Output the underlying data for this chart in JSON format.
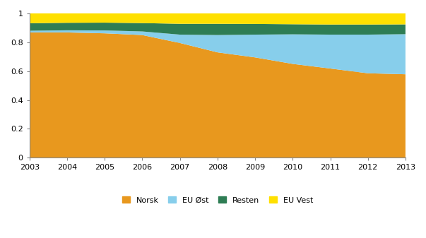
{
  "years": [
    2003,
    2004,
    2005,
    2006,
    2007,
    2008,
    2009,
    2010,
    2011,
    2012,
    2013
  ],
  "norsk": [
    0.868,
    0.868,
    0.862,
    0.85,
    0.795,
    0.73,
    0.695,
    0.65,
    0.618,
    0.585,
    0.578
  ],
  "eu_ost": [
    0.012,
    0.015,
    0.02,
    0.025,
    0.058,
    0.12,
    0.158,
    0.205,
    0.235,
    0.268,
    0.278
  ],
  "resten": [
    0.052,
    0.052,
    0.054,
    0.058,
    0.075,
    0.078,
    0.074,
    0.07,
    0.07,
    0.07,
    0.068
  ],
  "eu_vest": [
    0.068,
    0.065,
    0.064,
    0.067,
    0.072,
    0.072,
    0.073,
    0.075,
    0.077,
    0.077,
    0.076
  ],
  "colors": {
    "norsk": "#E8981E",
    "eu_ost": "#87CEEB",
    "resten": "#2E7D54",
    "eu_vest": "#FFE000"
  },
  "legend_labels": [
    "Norsk",
    "EU Øst",
    "Resten",
    "EU Vest"
  ],
  "ylim": [
    0,
    1.0
  ],
  "xlim": [
    2003,
    2013
  ],
  "background_color": "#ffffff",
  "grid_color": "#cccccc"
}
